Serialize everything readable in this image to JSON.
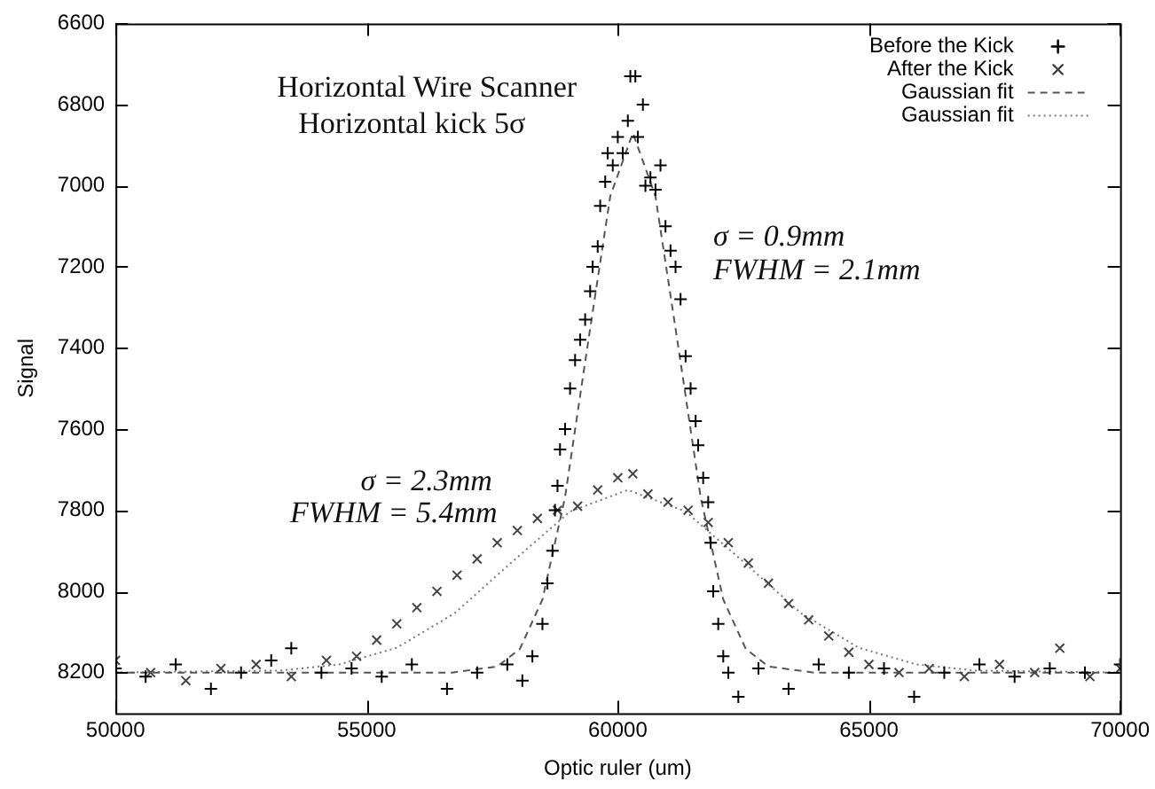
{
  "chart_data": {
    "type": "scatter",
    "xlabel": "Optic ruler (um)",
    "ylabel": "Signal",
    "xlim": [
      50000,
      70000
    ],
    "xticks": [
      50000,
      55000,
      60000,
      65000,
      70000
    ],
    "ylim": [
      8300,
      6600
    ],
    "yticks": [
      6600,
      6800,
      7000,
      7200,
      7400,
      7600,
      7800,
      8000,
      8200
    ],
    "grid": false,
    "legend": "top right",
    "annotations": [
      "Horizontal Wire Scanner",
      "Horizontal kick 5σ",
      "σ = 0.9mm",
      "FWHM = 2.1mm",
      "σ = 2.3mm",
      "FWHM = 5.4mm"
    ],
    "series": [
      {
        "name": "Before the Kick",
        "marker": "cross",
        "color": "#000000",
        "x": [
          50000,
          50600,
          51200,
          51900,
          52500,
          53100,
          53500,
          54100,
          54700,
          55300,
          55900,
          56600,
          57200,
          57800,
          58100,
          58300,
          58500,
          58600,
          58700,
          58750,
          58800,
          58850,
          58950,
          59050,
          59150,
          59250,
          59350,
          59450,
          59500,
          59600,
          59650,
          59750,
          59800,
          59900,
          60000,
          60100,
          60200,
          60250,
          60350,
          60400,
          60500,
          60550,
          60650,
          60750,
          60850,
          60950,
          61050,
          61150,
          61250,
          61350,
          61450,
          61550,
          61600,
          61700,
          61800,
          61850,
          61900,
          62000,
          62100,
          62200,
          62400,
          62800,
          63400,
          64000,
          64600,
          65300,
          65900,
          66500,
          67200,
          67900,
          68600,
          69300,
          70000
        ],
        "values": [
          8190,
          8210,
          8180,
          8240,
          8200,
          8170,
          8140,
          8200,
          8190,
          8210,
          8180,
          8240,
          8200,
          8180,
          8220,
          8160,
          8080,
          7980,
          7900,
          7800,
          7740,
          7650,
          7600,
          7500,
          7430,
          7380,
          7330,
          7260,
          7200,
          7150,
          7050,
          6990,
          6920,
          6950,
          6880,
          6920,
          6840,
          6730,
          6730,
          6880,
          6800,
          7000,
          6980,
          7010,
          6950,
          7100,
          7160,
          7200,
          7280,
          7420,
          7500,
          7580,
          7640,
          7720,
          7780,
          7880,
          8000,
          8080,
          8160,
          8200,
          8260,
          8190,
          8240,
          8180,
          8200,
          8190,
          8260,
          8200,
          8180,
          8210,
          8190,
          8200,
          8180
        ]
      },
      {
        "name": "After the Kick",
        "marker": "x",
        "color": "#444444",
        "x": [
          50000,
          50700,
          51400,
          52100,
          52800,
          53500,
          54200,
          54800,
          55200,
          55600,
          56000,
          56400,
          56800,
          57200,
          57600,
          58000,
          58400,
          58800,
          59200,
          59600,
          60000,
          60300,
          60600,
          61000,
          61400,
          61800,
          62200,
          62600,
          63000,
          63400,
          63800,
          64200,
          64600,
          65000,
          65600,
          66200,
          66900,
          67600,
          68300,
          68800,
          69400,
          70000
        ],
        "values": [
          8170,
          8200,
          8220,
          8190,
          8180,
          8210,
          8170,
          8160,
          8120,
          8080,
          8040,
          8000,
          7960,
          7920,
          7880,
          7850,
          7820,
          7800,
          7790,
          7750,
          7720,
          7710,
          7760,
          7780,
          7800,
          7830,
          7880,
          7930,
          7980,
          8030,
          8070,
          8110,
          8150,
          8180,
          8200,
          8190,
          8210,
          8180,
          8200,
          8140,
          8210,
          8190
        ]
      },
      {
        "name": "Gaussian fit",
        "type": "line",
        "marker": "none",
        "line_style": "dashed",
        "color": "#555555",
        "x": [
          50000,
          56700,
          57600,
          58050,
          58500,
          58950,
          59400,
          59850,
          60300,
          60750,
          61200,
          61650,
          62100,
          62550,
          63000,
          63900,
          70000
        ],
        "values": [
          8200,
          8200,
          8185,
          8142,
          8020,
          7768,
          7393,
          7026,
          6870,
          7026,
          7393,
          7768,
          8020,
          8142,
          8185,
          8200,
          8200
        ]
      },
      {
        "name": "Gaussian fit",
        "type": "line",
        "marker": "none",
        "line_style": "dotted",
        "color": "#777777",
        "x": [
          50000,
          53300,
          54450,
          55600,
          56750,
          57900,
          59050,
          60200,
          61350,
          62500,
          63650,
          64800,
          65950,
          67100,
          70000
        ],
        "values": [
          8200,
          8195,
          8180,
          8139,
          8054,
          7927,
          7803,
          7750,
          7803,
          7927,
          8054,
          8139,
          8180,
          8195,
          8200
        ]
      }
    ]
  }
}
